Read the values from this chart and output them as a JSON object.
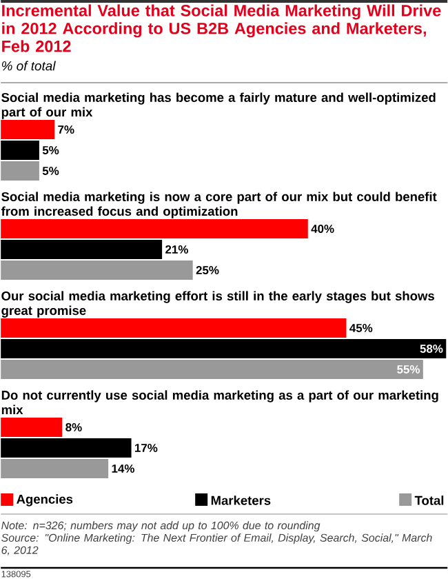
{
  "chart_data": {
    "type": "bar",
    "orientation": "horizontal",
    "title": "Incremental Value that Social Media Marketing Will Drive in 2012 According to US B2B Agencies and Marketers, Feb 2012",
    "subtitle": "% of total",
    "categories": [
      "Social media marketing has become a fairly mature and well-optimized part of our mix",
      "Social media marketing is now a core part of our mix but could benefit from increased focus and optimization",
      "Our social media marketing effort is still in the early stages but shows great promise",
      "Do not currently use social media marketing as a part of our marketing mix"
    ],
    "series": [
      {
        "name": "Agencies",
        "color": "#ff0000",
        "values": [
          7,
          40,
          45,
          8
        ],
        "value_labels": [
          "7%",
          "40%",
          "45%",
          "8%"
        ]
      },
      {
        "name": "Marketers",
        "color": "#000000",
        "values": [
          5,
          21,
          58,
          17
        ],
        "value_labels": [
          "5%",
          "21%",
          "58%",
          "17%"
        ]
      },
      {
        "name": "Total",
        "color": "#999999",
        "values": [
          5,
          25,
          55,
          14
        ],
        "value_labels": [
          "5%",
          "25%",
          "55%",
          "14%"
        ]
      }
    ],
    "legend": "bottom",
    "annotations": [
      "Note: n=326; numbers may not add up to 100% due to rounding",
      "Source: \"Online Marketing: The Next Frontier of Email, Display, Search, Social,\" March 6, 2012",
      "138095"
    ]
  }
}
